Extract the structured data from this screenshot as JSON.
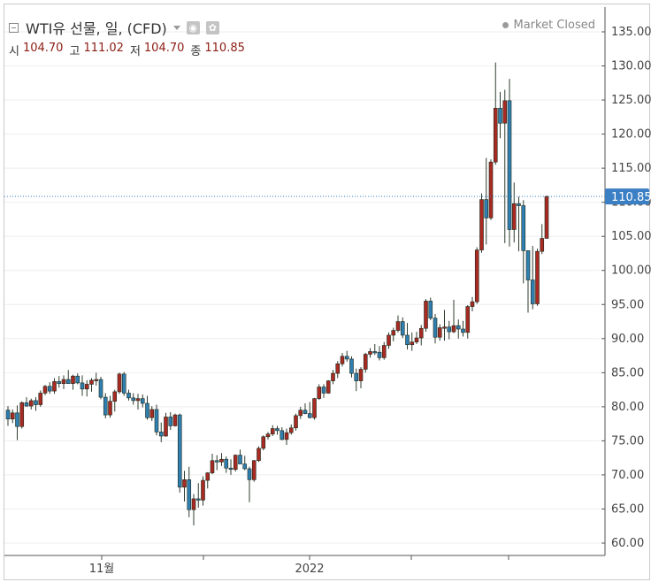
{
  "header": {
    "title": "WTI유 선물, 일, (CFD)",
    "status": "Market Closed",
    "visibility_icon": "eye-icon",
    "settings_icon": "gear-icon"
  },
  "ohlc": {
    "open_label": "시",
    "open": "104.70",
    "high_label": "고",
    "high": "111.02",
    "low_label": "저",
    "low": "104.70",
    "close_label": "종",
    "close": "110.85"
  },
  "colors": {
    "up": "#a82a22",
    "down": "#2f7fb0",
    "wick": "#2e3d2e",
    "last_badge": "#3b7fc4",
    "last_line": "#3b7fc4",
    "grid": "#eeeeee"
  },
  "chart_data": {
    "type": "candlestick",
    "title": "WTI유 선물, 일, (CFD)",
    "y_axis": {
      "min": 60,
      "max": 135,
      "ticks": [
        "135.00",
        "130.00",
        "125.00",
        "120.00",
        "115.00",
        "110.00",
        "105.00",
        "100.00",
        "95.00",
        "90.00",
        "85.00",
        "80.00",
        "75.00",
        "70.00",
        "65.00",
        "60.00"
      ],
      "position": "right"
    },
    "x_axis": {
      "labels": [
        "11월",
        "2022"
      ]
    },
    "last_price": "110.85",
    "grid": true,
    "candles": [
      [
        79.5,
        80.1,
        77.2,
        78.2
      ],
      [
        78.2,
        79.6,
        77.6,
        79.1
      ],
      [
        79.1,
        80.2,
        75.1,
        77.1
      ],
      [
        77.1,
        80.8,
        76.8,
        80.6
      ],
      [
        80.6,
        81.4,
        80.0,
        80.1
      ],
      [
        80.1,
        81.2,
        79.6,
        80.9
      ],
      [
        80.9,
        81.4,
        79.4,
        80.3
      ],
      [
        80.3,
        82.4,
        80.0,
        82.0
      ],
      [
        82.0,
        83.2,
        81.7,
        83.0
      ],
      [
        83.0,
        83.6,
        81.9,
        82.3
      ],
      [
        82.3,
        84.2,
        81.9,
        83.7
      ],
      [
        83.7,
        84.5,
        82.8,
        83.4
      ],
      [
        83.4,
        84.6,
        82.6,
        84.0
      ],
      [
        84.0,
        85.4,
        83.6,
        83.4
      ],
      [
        83.4,
        84.7,
        82.5,
        84.5
      ],
      [
        84.5,
        84.9,
        83.3,
        83.5
      ],
      [
        83.5,
        84.6,
        81.6,
        82.6
      ],
      [
        82.6,
        83.9,
        81.5,
        83.3
      ],
      [
        83.3,
        84.2,
        82.2,
        83.9
      ],
      [
        83.9,
        85.0,
        83.1,
        84.0
      ],
      [
        84.0,
        84.4,
        81.1,
        81.4
      ],
      [
        81.4,
        82.0,
        78.3,
        78.8
      ],
      [
        78.8,
        81.6,
        78.4,
        80.8
      ],
      [
        80.8,
        82.5,
        79.3,
        82.2
      ],
      [
        82.2,
        85.0,
        81.9,
        84.8
      ],
      [
        84.8,
        85.1,
        81.6,
        82.0
      ],
      [
        82.0,
        82.5,
        80.9,
        81.3
      ],
      [
        81.3,
        82.0,
        80.3,
        80.9
      ],
      [
        80.9,
        81.9,
        79.6,
        81.2
      ],
      [
        81.2,
        81.8,
        79.9,
        80.5
      ],
      [
        80.5,
        81.6,
        78.1,
        78.4
      ],
      [
        78.4,
        80.1,
        77.9,
        79.6
      ],
      [
        79.6,
        80.3,
        75.8,
        76.3
      ],
      [
        76.3,
        77.7,
        74.8,
        75.7
      ],
      [
        75.7,
        79.1,
        75.6,
        78.5
      ],
      [
        78.5,
        79.2,
        76.6,
        77.2
      ],
      [
        77.2,
        79.0,
        77.1,
        78.8
      ],
      [
        78.8,
        79.0,
        67.4,
        68.2
      ],
      [
        68.2,
        70.6,
        66.1,
        69.3
      ],
      [
        69.3,
        71.2,
        63.8,
        64.9
      ],
      [
        64.9,
        67.2,
        62.6,
        66.5
      ],
      [
        66.5,
        68.8,
        65.2,
        66.3
      ],
      [
        66.3,
        69.8,
        65.5,
        69.2
      ],
      [
        69.2,
        70.4,
        68.0,
        70.3
      ],
      [
        70.3,
        73.1,
        70.1,
        72.1
      ],
      [
        72.1,
        72.9,
        70.7,
        71.9
      ],
      [
        71.9,
        73.2,
        71.3,
        72.3
      ],
      [
        72.3,
        72.7,
        70.3,
        71.0
      ],
      [
        71.0,
        72.3,
        70.0,
        70.8
      ],
      [
        70.8,
        73.0,
        70.5,
        72.9
      ],
      [
        72.9,
        73.7,
        71.7,
        71.6
      ],
      [
        71.6,
        72.8,
        70.7,
        70.9
      ],
      [
        70.9,
        71.2,
        66.0,
        69.3
      ],
      [
        69.3,
        72.2,
        69.0,
        72.1
      ],
      [
        72.1,
        74.2,
        71.9,
        73.9
      ],
      [
        73.9,
        75.8,
        73.6,
        75.6
      ],
      [
        75.6,
        76.3,
        75.2,
        76.0
      ],
      [
        76.0,
        77.3,
        75.7,
        76.8
      ],
      [
        76.8,
        77.2,
        75.9,
        76.5
      ],
      [
        76.5,
        77.0,
        75.1,
        75.2
      ],
      [
        75.2,
        76.8,
        74.4,
        76.2
      ],
      [
        76.2,
        77.4,
        75.9,
        76.9
      ],
      [
        76.9,
        79.0,
        76.5,
        78.7
      ],
      [
        78.7,
        80.0,
        78.2,
        79.5
      ],
      [
        79.5,
        80.5,
        78.9,
        79.0
      ],
      [
        79.0,
        80.7,
        78.3,
        78.4
      ],
      [
        78.4,
        81.3,
        78.1,
        81.2
      ],
      [
        81.2,
        83.3,
        81.0,
        82.9
      ],
      [
        82.9,
        83.3,
        81.3,
        82.0
      ],
      [
        82.0,
        83.9,
        81.9,
        83.8
      ],
      [
        83.8,
        85.4,
        83.3,
        84.9
      ],
      [
        84.9,
        86.7,
        84.2,
        86.3
      ],
      [
        86.3,
        87.9,
        85.9,
        87.4
      ],
      [
        87.4,
        88.2,
        86.6,
        87.0
      ],
      [
        87.0,
        87.4,
        84.3,
        84.9
      ],
      [
        84.9,
        85.6,
        82.3,
        83.8
      ],
      [
        83.8,
        85.8,
        82.7,
        85.5
      ],
      [
        85.5,
        87.9,
        85.0,
        87.7
      ],
      [
        87.7,
        88.6,
        87.2,
        88.1
      ],
      [
        88.1,
        89.2,
        87.6,
        88.0
      ],
      [
        88.0,
        88.9,
        86.8,
        87.2
      ],
      [
        87.2,
        89.5,
        86.9,
        89.0
      ],
      [
        89.0,
        90.9,
        88.5,
        90.5
      ],
      [
        90.5,
        91.6,
        89.6,
        91.2
      ],
      [
        91.2,
        93.4,
        90.9,
        92.5
      ],
      [
        92.5,
        93.1,
        90.1,
        90.5
      ],
      [
        90.5,
        92.3,
        88.4,
        89.1
      ],
      [
        89.1,
        90.9,
        88.2,
        89.5
      ],
      [
        89.5,
        91.0,
        89.2,
        90.1
      ],
      [
        90.1,
        92.0,
        89.0,
        91.5
      ],
      [
        91.5,
        95.8,
        91.0,
        95.5
      ],
      [
        95.5,
        96.0,
        92.7,
        93.0
      ],
      [
        93.0,
        93.6,
        89.3,
        90.2
      ],
      [
        90.2,
        92.1,
        89.7,
        91.6
      ],
      [
        91.6,
        94.2,
        89.7,
        91.7
      ],
      [
        91.7,
        92.6,
        89.9,
        91.0
      ],
      [
        91.0,
        95.7,
        90.8,
        91.9
      ],
      [
        91.9,
        92.8,
        90.0,
        91.4
      ],
      [
        91.4,
        92.6,
        90.3,
        90.9
      ],
      [
        90.9,
        94.9,
        90.0,
        94.7
      ],
      [
        94.7,
        96.1,
        94.0,
        95.4
      ],
      [
        95.4,
        103.4,
        95.1,
        103.0
      ],
      [
        103.0,
        111.3,
        102.6,
        110.4
      ],
      [
        110.4,
        116.5,
        103.8,
        107.7
      ],
      [
        107.7,
        116.3,
        107.4,
        115.9
      ],
      [
        115.9,
        130.5,
        115.5,
        123.8
      ],
      [
        123.8,
        126.2,
        119.4,
        121.6
      ],
      [
        121.6,
        126.5,
        104.0,
        124.9
      ],
      [
        124.9,
        128.1,
        103.5,
        106.0
      ],
      [
        106.0,
        112.9,
        104.1,
        109.8
      ],
      [
        109.8,
        110.8,
        102.8,
        109.5
      ],
      [
        109.5,
        110.3,
        98.1,
        102.9
      ],
      [
        102.9,
        102.8,
        93.8,
        98.6
      ],
      [
        98.6,
        103.6,
        94.3,
        95.1
      ],
      [
        95.1,
        103.2,
        94.8,
        102.8
      ],
      [
        102.8,
        106.8,
        102.4,
        104.7
      ],
      [
        104.7,
        111.0,
        104.7,
        110.85
      ]
    ]
  }
}
